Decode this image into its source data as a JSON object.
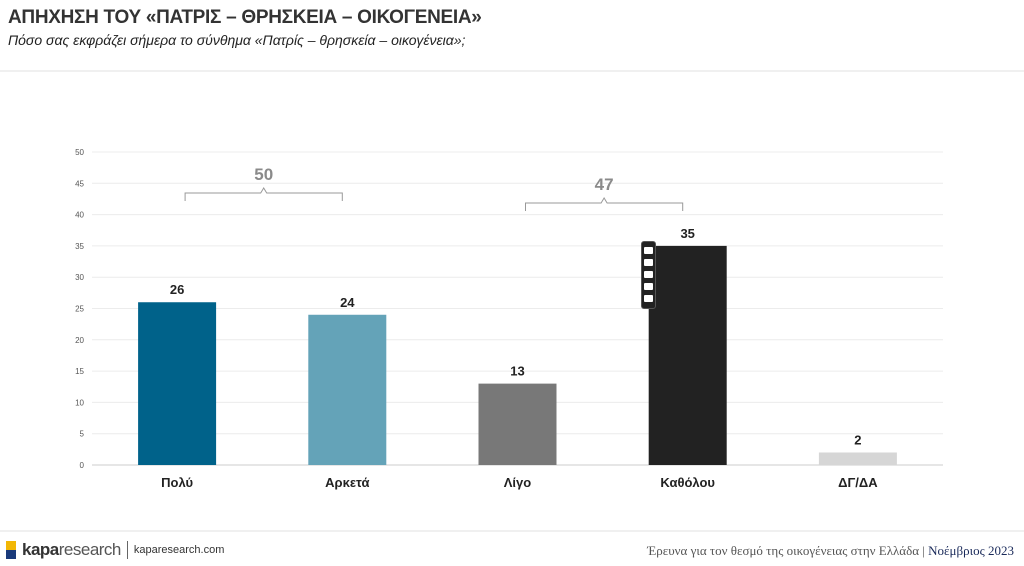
{
  "header": {
    "title": "ΑΠΗΧΗΣΗ ΤΟΥ «ΠΑΤΡΙΣ – ΘΡΗΣΚΕΙΑ – ΟΙΚΟΓΕΝΕΙΑ»",
    "subtitle": "Πόσο σας εκφράζει σήμερα το σύνθημα «Πατρίς – θρησκεία – οικογένεια»;"
  },
  "chart_data": {
    "type": "bar",
    "title": "",
    "xlabel": "",
    "ylabel": "",
    "categories": [
      "Πολύ",
      "Αρκετά",
      "Λίγο",
      "Καθόλου",
      "ΔΓ/ΔΑ"
    ],
    "values": [
      26,
      24,
      13,
      35,
      2
    ],
    "colors": [
      "#00628A",
      "#64A3B8",
      "#787878",
      "#222222",
      "#D6D6D6"
    ],
    "ylim": [
      0,
      50
    ],
    "yticks": [
      0,
      5,
      10,
      15,
      20,
      25,
      30,
      35,
      40,
      45,
      50
    ],
    "grid": true,
    "annotations": [
      {
        "label": "50",
        "from": "Πολύ",
        "to": "Αρκετά"
      },
      {
        "label": "47",
        "from": "Λίγο",
        "to": "Καθόλου"
      }
    ]
  },
  "footer": {
    "logo_bold": "kapa",
    "logo_rest": "research",
    "site": "kaparesearch.com",
    "survey": "Έρευνα για τον θεσμό της οικογένειας στην Ελλάδα | ",
    "date": "Νοέμβριος 2023"
  },
  "icons": [
    "pencil-icon",
    "camera-icon",
    "video-icon",
    "copy-icon",
    "gear-icon"
  ]
}
